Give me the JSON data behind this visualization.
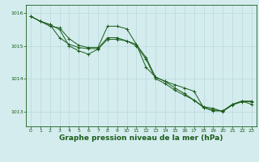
{
  "background_color": "#d4ecee",
  "grid_color": "#b8d8dc",
  "line_color": "#1a5c1a",
  "marker_color": "#1a5c1a",
  "xlabel": "Graphe pression niveau de la mer (hPa)",
  "xlabel_fontsize": 6.5,
  "xlabel_bold": true,
  "xlim": [
    -0.5,
    23.5
  ],
  "ylim": [
    1012.55,
    1016.25
  ],
  "yticks": [
    1013,
    1014,
    1015,
    1016
  ],
  "xticks": [
    0,
    1,
    2,
    3,
    4,
    5,
    6,
    7,
    8,
    9,
    10,
    11,
    12,
    13,
    14,
    15,
    16,
    17,
    18,
    19,
    20,
    21,
    22,
    23
  ],
  "series": [
    [
      1015.9,
      1015.75,
      1015.65,
      1015.5,
      1015.0,
      1014.85,
      1014.75,
      1014.9,
      1015.2,
      1015.2,
      1015.15,
      1015.0,
      1014.6,
      1014.0,
      1013.85,
      1013.65,
      1013.5,
      1013.35,
      1013.15,
      1013.1,
      1013.0,
      1013.2,
      1013.3,
      1013.3
    ],
    [
      1015.9,
      1015.75,
      1015.65,
      1015.25,
      1015.05,
      1014.95,
      1014.92,
      1014.92,
      1015.25,
      1015.25,
      1015.15,
      1015.05,
      1014.65,
      1014.05,
      1013.92,
      1013.72,
      1013.55,
      1013.35,
      1013.12,
      1013.05,
      1013.02,
      1013.22,
      1013.32,
      1013.32
    ],
    [
      1015.9,
      1015.75,
      1015.6,
      1015.55,
      1015.22,
      1015.02,
      1014.95,
      1014.95,
      1015.6,
      1015.6,
      1015.52,
      1015.05,
      1014.35,
      1014.05,
      1013.92,
      1013.82,
      1013.72,
      1013.62,
      1013.12,
      1013.02,
      1013.02,
      1013.22,
      1013.32,
      1013.22
    ]
  ]
}
